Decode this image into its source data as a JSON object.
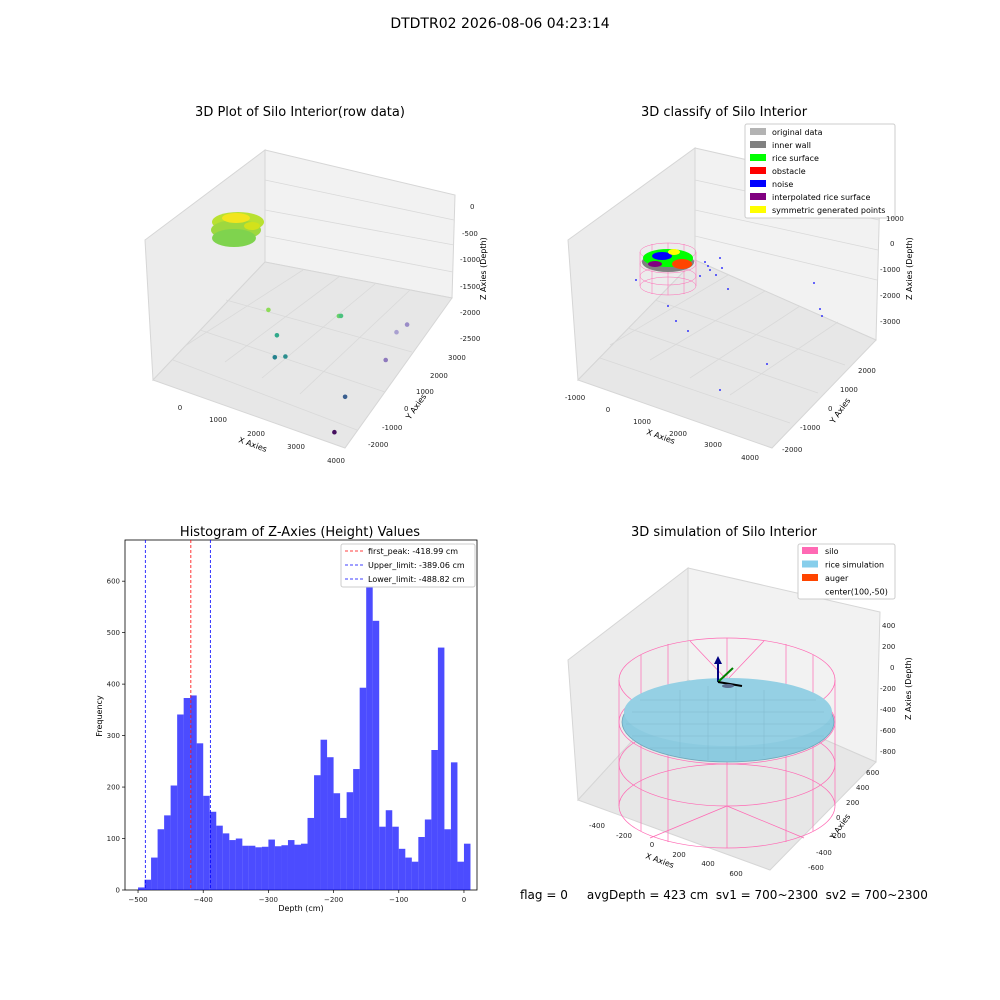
{
  "figure": {
    "suptitle": "DTDTR02 2026-08-06 04:23:14",
    "status_line": "flag = 0     avgDepth = 423 cm  sv1 = 700~2300  sv2 = 700~2300"
  },
  "chart_data": [
    {
      "type": "scatter",
      "projection": "3d",
      "title": "3D Plot of Silo Interior(row data)",
      "xlabel": "X Axies",
      "ylabel": "Y Axies",
      "zlabel": "Z Axies (Depth)",
      "x_ticks": [
        "0",
        "1000",
        "2000",
        "3000",
        "4000"
      ],
      "y_ticks": [
        "-2000",
        "-1000",
        "0",
        "1000",
        "2000",
        "3000"
      ],
      "z_ticks": [
        "0",
        "-500",
        "-1000",
        "-1500",
        "-2000",
        "-2500"
      ],
      "colormap": "viridis",
      "points": [
        {
          "x": 1500,
          "y": 2700,
          "z": -2400,
          "c": "#6bd26a"
        },
        {
          "x": 1800,
          "y": 2200,
          "z": -2100,
          "c": "#4cc17f"
        },
        {
          "x": 600,
          "y": 1200,
          "z": -2000,
          "c": "#8ddc57"
        },
        {
          "x": 1000,
          "y": 800,
          "z": -2300,
          "c": "#31a98b"
        },
        {
          "x": 1400,
          "y": 400,
          "z": -2500,
          "c": "#2c8f8e"
        },
        {
          "x": 1200,
          "y": 300,
          "z": -2550,
          "c": "#24828e"
        },
        {
          "x": 3300,
          "y": 1800,
          "z": -1800,
          "c": "#a9a0d0"
        },
        {
          "x": 3400,
          "y": 2100,
          "z": -1700,
          "c": "#9a8cc7"
        },
        {
          "x": 3350,
          "y": 1200,
          "z": -2200,
          "c": "#8e79bd"
        },
        {
          "x": 3200,
          "y": -400,
          "z": -2500,
          "c": "#3a5f8f"
        },
        {
          "x": 3500,
          "y": -1500,
          "z": -2800,
          "c": "#46105f"
        }
      ]
    },
    {
      "type": "scatter",
      "projection": "3d",
      "title": "3D classify of Silo Interior",
      "xlabel": "X Axies",
      "ylabel": "Y Axies",
      "zlabel": "Z Axies (Depth)",
      "x_ticks": [
        "-1000",
        "0",
        "1000",
        "2000",
        "3000",
        "4000"
      ],
      "y_ticks": [
        "-2000",
        "-1000",
        "0",
        "1000",
        "2000"
      ],
      "z_ticks": [
        "1000",
        "0",
        "-1000",
        "-2000",
        "-3000"
      ],
      "legend_position": "top-right",
      "legend": [
        {
          "label": "original data",
          "color": "#b3b3b3"
        },
        {
          "label": "inner wall",
          "color": "#808080"
        },
        {
          "label": "rice surface",
          "color": "#00ff00"
        },
        {
          "label": "obstacle",
          "color": "#ff0000"
        },
        {
          "label": "noise",
          "color": "#0000ff"
        },
        {
          "label": "interpolated rice surface",
          "color": "#800080"
        },
        {
          "label": "symmetric generated points",
          "color": "#ffff00"
        }
      ]
    },
    {
      "type": "bar",
      "title": "Histogram of Z-Axies (Height) Values",
      "xlabel": "Depth (cm)",
      "ylabel": "Frequency",
      "xlim": [
        -520,
        20
      ],
      "ylim": [
        0,
        680
      ],
      "x_ticks": [
        -500,
        -400,
        -300,
        -200,
        -100,
        0
      ],
      "y_ticks": [
        0,
        100,
        200,
        300,
        400,
        500,
        600
      ],
      "bar_color": "#0000ff",
      "bin_start": -500,
      "bin_width": 10,
      "values": [
        5,
        20,
        63,
        118,
        145,
        203,
        341,
        373,
        378,
        285,
        183,
        152,
        125,
        110,
        97,
        100,
        86,
        86,
        83,
        84,
        98,
        85,
        87,
        97,
        88,
        90,
        140,
        223,
        292,
        258,
        188,
        140,
        190,
        235,
        393,
        642,
        523,
        123,
        155,
        123,
        80,
        63,
        55,
        103,
        137,
        272,
        471,
        118,
        248,
        55,
        90
      ],
      "vlines": [
        {
          "label": "first_peak: -418.99 cm",
          "x": -418.99,
          "color": "#ff0000"
        },
        {
          "label": "Upper_limit: -389.06 cm",
          "x": -389.06,
          "color": "#0000ff"
        },
        {
          "label": "Lower_limit: -488.82 cm",
          "x": -488.82,
          "color": "#0000ff"
        }
      ],
      "legend_position": "top-right"
    },
    {
      "type": "surface",
      "projection": "3d",
      "title": "3D simulation of Silo Interior",
      "xlabel": "X Axies",
      "ylabel": "Y Axies",
      "zlabel": "Z Axies (Depth)",
      "x_ticks": [
        "-400",
        "-200",
        "0",
        "200",
        "400",
        "600"
      ],
      "y_ticks": [
        "-600",
        "-400",
        "-200",
        "0",
        "200",
        "400",
        "600"
      ],
      "z_ticks": [
        "400",
        "200",
        "0",
        "-200",
        "-400",
        "-600",
        "-800"
      ],
      "legend_position": "top-right",
      "legend": [
        {
          "label": "silo",
          "color": "#ff69b4"
        },
        {
          "label": "rice simulation",
          "color": "#87ceeb"
        },
        {
          "label": "auger",
          "color": "#ff4500"
        },
        {
          "label": "center(100,-50)",
          "color": ""
        }
      ],
      "rice_surface_depth_cm": -423
    }
  ]
}
